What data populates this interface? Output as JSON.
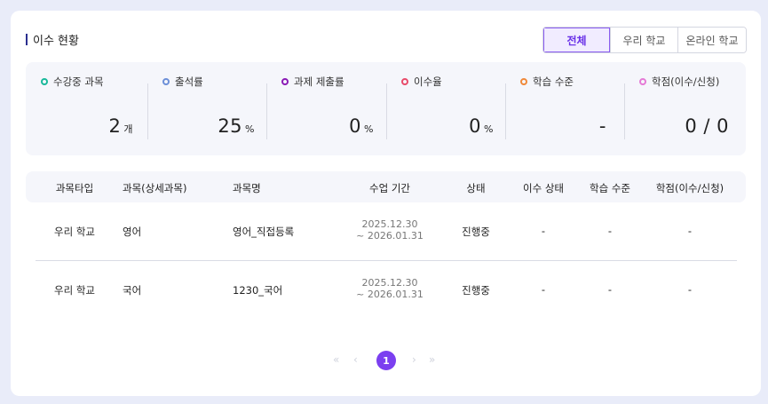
{
  "header": {
    "title": "이수 현황"
  },
  "filter_tabs": [
    {
      "label": "전체",
      "active": true
    },
    {
      "label": "우리 학교",
      "active": false
    },
    {
      "label": "온라인 학교",
      "active": false
    }
  ],
  "stats": [
    {
      "label": "수강중 과목",
      "value": "2",
      "unit": "개",
      "dot_color": "#19b89a"
    },
    {
      "label": "출석률",
      "value": "25",
      "unit": "%",
      "dot_color": "#6c8fd8"
    },
    {
      "label": "과제 제출률",
      "value": "0",
      "unit": "%",
      "dot_color": "#8a1ab5"
    },
    {
      "label": "이수율",
      "value": "0",
      "unit": "%",
      "dot_color": "#e84b6a"
    },
    {
      "label": "학습 수준",
      "value": "-",
      "unit": "",
      "dot_color": "#f0893a"
    },
    {
      "label": "학점(이수/신청)",
      "value": "0 / 0",
      "unit": "",
      "dot_color": "#e57ad6"
    }
  ],
  "table": {
    "columns": [
      "과목타입",
      "과목(상세과목)",
      "과목명",
      "수업 기간",
      "상태",
      "이수 상태",
      "학습 수준",
      "학점(이수/신청)"
    ],
    "rows": [
      {
        "type": "우리 학교",
        "subject": "영어",
        "name": "영어_직접등록",
        "period_start": "2025.12.30",
        "period_end": "~ 2026.01.31",
        "status": "진행중",
        "completion": "-",
        "level": "-",
        "credits": "-"
      },
      {
        "type": "우리 학교",
        "subject": "국어",
        "name": "1230_국어",
        "period_start": "2025.12.30",
        "period_end": "~ 2026.01.31",
        "status": "진행중",
        "completion": "-",
        "level": "-",
        "credits": "-"
      }
    ]
  },
  "pagination": {
    "first": "«",
    "prev": "‹",
    "current": "1",
    "next": "›",
    "last": "»",
    "accent": "#7b3ff0"
  }
}
